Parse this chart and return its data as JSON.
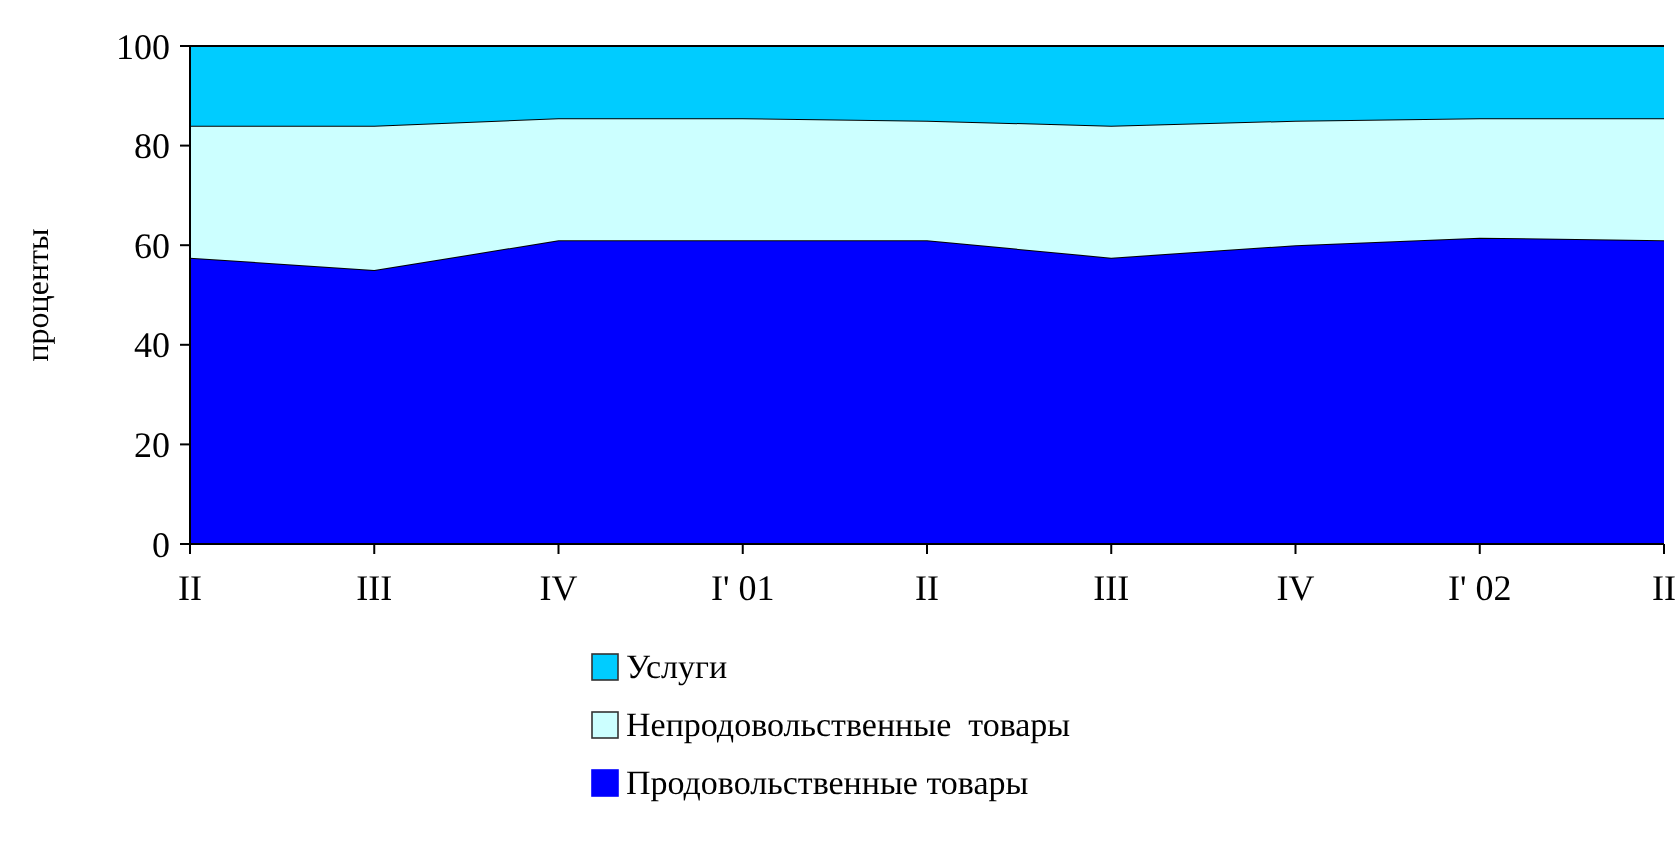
{
  "chart_data": {
    "type": "area",
    "stacked": true,
    "ylabel": "проценты",
    "categories": [
      "II",
      "III",
      "IV",
      "I' 01",
      "II",
      "III",
      "IV",
      "I' 02",
      "II"
    ],
    "series": [
      {
        "name": "Продовольственные товары",
        "color": "#0000ff",
        "values": [
          57.5,
          55,
          61,
          61,
          61,
          57.5,
          60,
          61.5,
          61
        ]
      },
      {
        "name": "Непродовольственные  товары",
        "color": "#ccffff",
        "values": [
          26.5,
          29,
          24.5,
          24.5,
          24,
          26.5,
          25,
          24,
          24.5
        ]
      },
      {
        "name": "Услуги",
        "color": "#00ccff",
        "values": [
          16,
          16,
          14.5,
          14.5,
          15,
          16,
          15,
          14.5,
          14.5
        ]
      }
    ],
    "ylim": [
      0,
      100
    ],
    "yticks": [
      0,
      20,
      40,
      60,
      80,
      100
    ],
    "grid": false,
    "legend": "bottom"
  }
}
